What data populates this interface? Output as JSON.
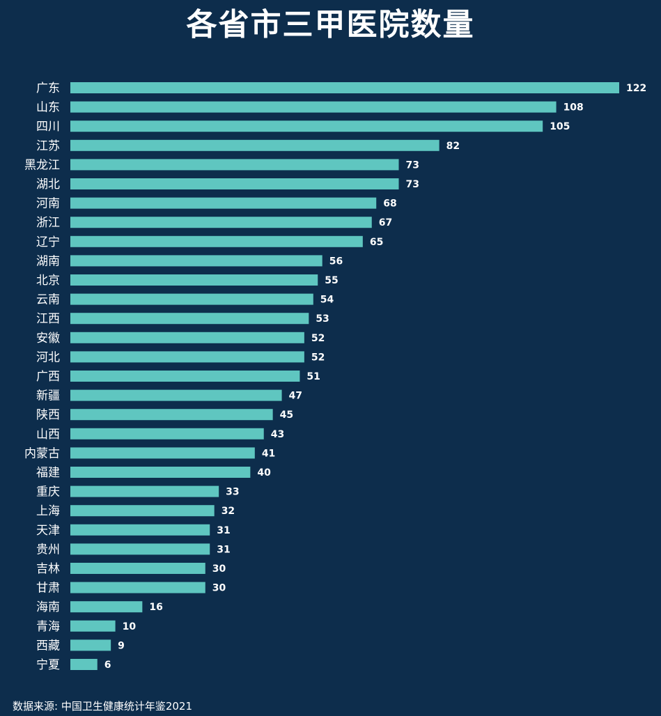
{
  "chart_data": {
    "type": "bar",
    "orientation": "horizontal",
    "title": "各省市三甲医院数量",
    "categories": [
      "广东",
      "山东",
      "四川",
      "江苏",
      "黑龙江",
      "湖北",
      "河南",
      "浙江",
      "辽宁",
      "湖南",
      "北京",
      "云南",
      "江西",
      "安徽",
      "河北",
      "广西",
      "新疆",
      "陕西",
      "山西",
      "内蒙古",
      "福建",
      "重庆",
      "上海",
      "天津",
      "贵州",
      "吉林",
      "甘肃",
      "海南",
      "青海",
      "西藏",
      "宁夏"
    ],
    "values": [
      122,
      108,
      105,
      82,
      73,
      73,
      68,
      67,
      65,
      56,
      55,
      54,
      53,
      52,
      52,
      51,
      47,
      45,
      43,
      41,
      40,
      33,
      32,
      31,
      31,
      30,
      30,
      16,
      10,
      9,
      6
    ],
    "bar_color": "#5fc6c0",
    "background_color": "#0d2d4c",
    "data_labels": true,
    "xlim": [
      0,
      122
    ]
  },
  "source": "数据来源: 中国卫生健康统计年鉴2021"
}
